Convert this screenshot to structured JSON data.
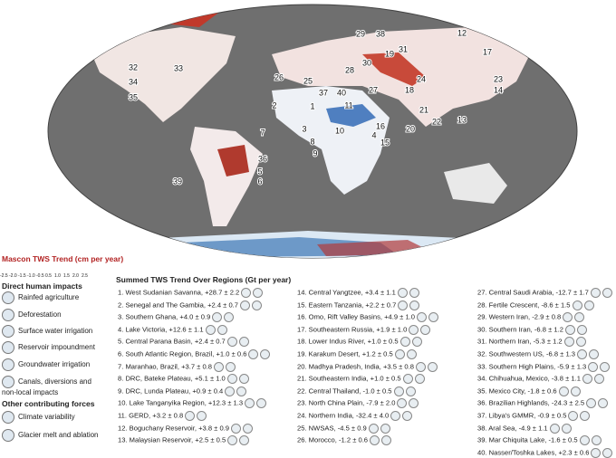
{
  "colorbar": {
    "title": "Mascon TWS Trend (cm per year)",
    "ticks": [
      "-2.5",
      "-2.0",
      "-1.5",
      "-1.0",
      "-0.5",
      "0.5",
      "1.0",
      "1.5",
      "2.0",
      "2.5"
    ]
  },
  "legend": {
    "direct_title": "Direct human impacts",
    "direct_items": [
      "Rainfed agriculture",
      "Deforestation",
      "Surface water irrigation",
      "Reservoir impoundment",
      "Groundwater irrigation",
      "Canals, diversions and non-local impacts"
    ],
    "other_title": "Other contributing forces",
    "other_items": [
      "Climate variability",
      "Glacier melt and ablation"
    ]
  },
  "regions_title": "Summed TWS Trend Over Regions (Gt per year)",
  "regions": [
    "1. West Sudanian Savanna, +28.7 ± 2.2",
    "2. Senegal and The Gambia, +2.4 ± 0.7",
    "3. Southern Ghana, +4.0 ± 0.9",
    "4. Lake Victoria, +12.6 ± 1.1",
    "5. Central Parana Basin, +2.4 ± 0.7",
    "6. South Atlantic Region, Brazil, +1.0 ± 0.6",
    "7. Maranhao, Brazil, +3.7 ± 0.8",
    "8. DRC, Bateke Plateau, +5.1 ± 1.0",
    "9. DRC, Lunda Plateau, +0.9 ± 0.4",
    "10. Lake Tanganyika Region, +12.3 ± 1.3",
    "11. GERD, +3.2 ± 0.8",
    "12. Boguchany Reservoir, +3.8 ± 0.9",
    "13. Malaysian Reservoir, +2.5 ± 0.5",
    "14. Central Yangtzee, +3.4 ± 1.1",
    "15. Eastern Tanzania, +2.2 ± 0.7",
    "16. Omo, Rift Valley Basins, +4.9 ± 1.0",
    "17. Southeastern Russia, +1.9 ± 1.0",
    "18. Lower Indus River, +1.0 ± 0.5",
    "19. Karakum Desert, +1.2 ± 0.5",
    "20. Madhya Pradesh, India, +3.5 ± 0.8",
    "21. Southeastern India, +1.0 ± 0.5",
    "22. Central Thailand, -1.0 ± 0.5",
    "23. North China Plain, -7.9 ± 2.0",
    "24. Northern India, -32.4 ± 4.0",
    "25. NWSAS, -4.5 ± 0.9",
    "26. Morocco, -1.2 ± 0.6",
    "27. Central Saudi Arabia, -12.7 ± 1.7",
    "28. Fertile Crescent, -8.6 ± 1.5",
    "29. Western Iran, -2.9 ± 0.8",
    "30. Southern Iran, -6.8 ± 1.2",
    "31. Northern Iran, -5.3 ± 1.2",
    "32. Southwestern US, -6.8 ± 1.3",
    "33. Southern High Plains, -5.9 ± 1.3",
    "34. Chihuahua, Mexico, -3.8 ± 1.1",
    "35. Mexico City, -1.8 ± 0.6",
    "36. Brazilian Highlands, -24.3 ± 2.5",
    "37. Libya's GMMR, -0.9 ± 0.5",
    "38. Aral Sea, -4.9 ± 1.1",
    "39. Mar Chiquita Lake, -1.6 ± 0.5",
    "40. Nasser/Toshka Lakes, +2.3 ± 0.6"
  ],
  "map_labels": [
    "1",
    "2",
    "3",
    "4",
    "5",
    "6",
    "7",
    "8",
    "9",
    "10",
    "11",
    "12",
    "13",
    "14",
    "15",
    "16",
    "17",
    "18",
    "19",
    "20",
    "21",
    "22",
    "23",
    "24",
    "25",
    "26",
    "27",
    "28",
    "29",
    "30",
    "31",
    "32",
    "33",
    "34",
    "35",
    "36",
    "37",
    "38",
    "39",
    "40"
  ]
}
